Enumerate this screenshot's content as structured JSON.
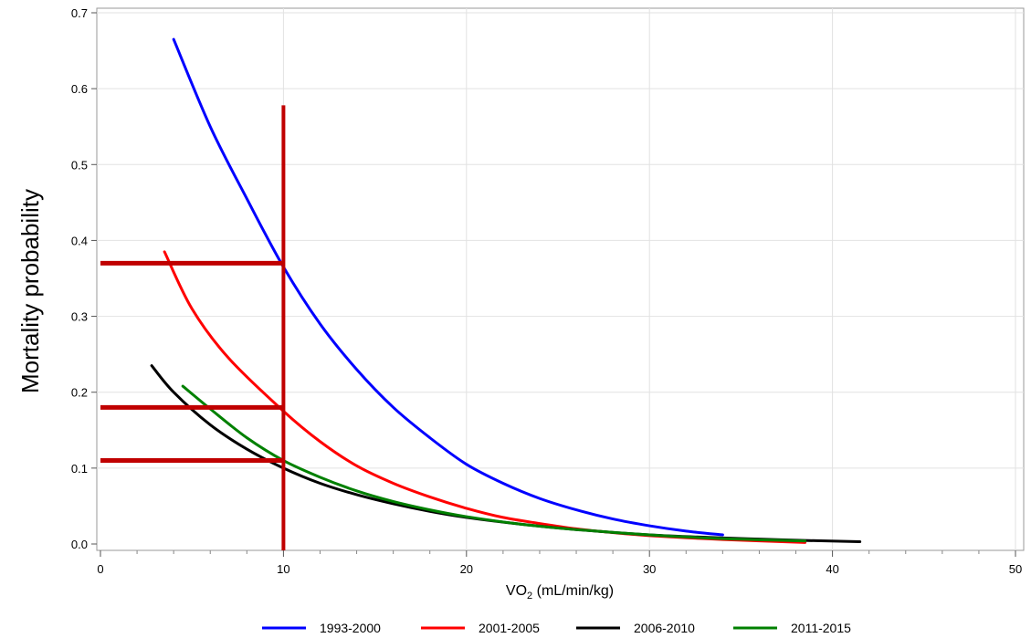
{
  "chart_data": {
    "type": "line",
    "xlabel_main": "VO",
    "xlabel_sub": "2",
    "xlabel_units": " (mL/min/kg)",
    "ylabel": "Mortality probability",
    "xlim": [
      0,
      50
    ],
    "ylim": [
      0,
      0.7
    ],
    "x_ticks": [
      0,
      10,
      20,
      30,
      40,
      50
    ],
    "y_ticks": [
      0.0,
      0.1,
      0.2,
      0.3,
      0.4,
      0.5,
      0.6,
      0.7
    ],
    "x_tick_labels": [
      "0",
      "10",
      "20",
      "30",
      "40",
      "50"
    ],
    "y_tick_labels": [
      "0.0",
      "0.1",
      "0.2",
      "0.3",
      "0.4",
      "0.5",
      "0.6",
      "0.7"
    ],
    "grid": true,
    "legend_position": "bottom",
    "series": [
      {
        "name": "1993-2000",
        "color": "#0000ff",
        "x": [
          4,
          6,
          8,
          10,
          12,
          14,
          16,
          18,
          20,
          22,
          24,
          26,
          28,
          30,
          32,
          34
        ],
        "y": [
          0.665,
          0.55,
          0.455,
          0.365,
          0.29,
          0.23,
          0.18,
          0.14,
          0.105,
          0.08,
          0.06,
          0.045,
          0.033,
          0.024,
          0.017,
          0.012
        ]
      },
      {
        "name": "2001-2005",
        "color": "#ff0000",
        "x": [
          3.5,
          5,
          7,
          10,
          12,
          14,
          16,
          18,
          20,
          22,
          24,
          26,
          28,
          30,
          33,
          36,
          38.5
        ],
        "y": [
          0.385,
          0.31,
          0.245,
          0.175,
          0.135,
          0.103,
          0.08,
          0.062,
          0.047,
          0.035,
          0.027,
          0.02,
          0.015,
          0.011,
          0.007,
          0.004,
          0.002
        ]
      },
      {
        "name": "2006-2010",
        "color": "#000000",
        "x": [
          2.8,
          4,
          6,
          8,
          10,
          12,
          14,
          16,
          18,
          20,
          23,
          26,
          30,
          34,
          38,
          41.5
        ],
        "y": [
          0.235,
          0.2,
          0.157,
          0.125,
          0.1,
          0.08,
          0.065,
          0.053,
          0.043,
          0.035,
          0.026,
          0.019,
          0.012,
          0.008,
          0.005,
          0.003
        ]
      },
      {
        "name": "2011-2015",
        "color": "#008000",
        "x": [
          4.5,
          6,
          8,
          10,
          12,
          14,
          16,
          18,
          20,
          23,
          26,
          30,
          34,
          38.5
        ],
        "y": [
          0.208,
          0.178,
          0.14,
          0.11,
          0.088,
          0.07,
          0.056,
          0.045,
          0.036,
          0.026,
          0.019,
          0.012,
          0.007,
          0.004
        ]
      }
    ],
    "annotations": {
      "color": "#c00000",
      "vertical_line": {
        "x": 10,
        "y_from": 0,
        "y_to": 0.578
      },
      "horizontal_lines": [
        {
          "y": 0.37,
          "x_from": 0,
          "x_to": 10
        },
        {
          "y": 0.18,
          "x_from": 0,
          "x_to": 10
        },
        {
          "y": 0.11,
          "x_from": 0,
          "x_to": 10
        }
      ]
    }
  }
}
